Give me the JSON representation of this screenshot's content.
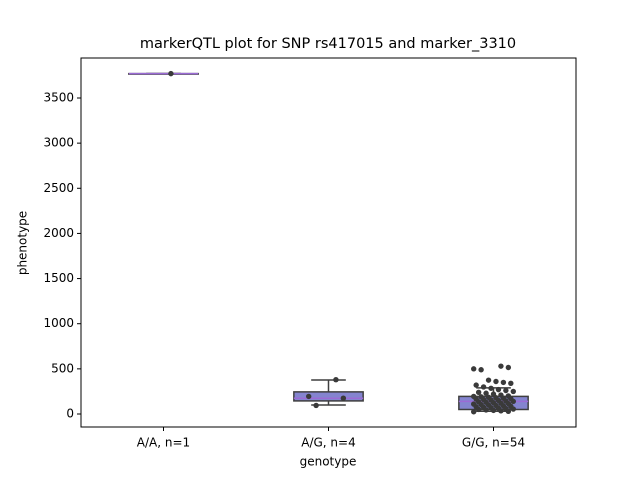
{
  "chart_data": {
    "type": "box",
    "title": "markerQTL plot for SNP rs417015 and marker_3310",
    "x_label": "genotype",
    "y_label": "phenotype",
    "categories": [
      "A/A, n=1",
      "A/G, n=4",
      "G/G, n=54"
    ],
    "boxes": [
      {
        "min": 3770,
        "q1": 3770,
        "median": 3770,
        "q3": 3770,
        "max": 3770
      },
      {
        "min": 100,
        "q1": 145,
        "median": 175,
        "q3": 245,
        "max": 376
      },
      {
        "min": 30,
        "q1": 50,
        "median": 140,
        "q3": 195,
        "max": 290
      }
    ],
    "points": [
      [
        3770
      ],
      [
        380,
        175,
        195,
        95
      ],
      [
        530,
        515,
        500,
        490,
        375,
        360,
        350,
        340,
        320,
        300,
        285,
        270,
        260,
        250,
        240,
        230,
        220,
        210,
        200,
        195,
        190,
        185,
        180,
        175,
        170,
        165,
        160,
        155,
        150,
        145,
        140,
        135,
        130,
        125,
        120,
        115,
        110,
        105,
        100,
        95,
        90,
        85,
        80,
        75,
        70,
        65,
        60,
        55,
        50,
        45,
        40,
        35,
        30,
        25
      ]
    ],
    "box_color": "#8484cf",
    "line_color": "#3f3f3f",
    "median_color": "#9b6bd6",
    "point_color": "#3a3a3a",
    "ylim": [
      -144,
      3943
    ],
    "yticks": [
      0,
      500,
      1000,
      1500,
      2000,
      2500,
      3000,
      3500
    ]
  }
}
